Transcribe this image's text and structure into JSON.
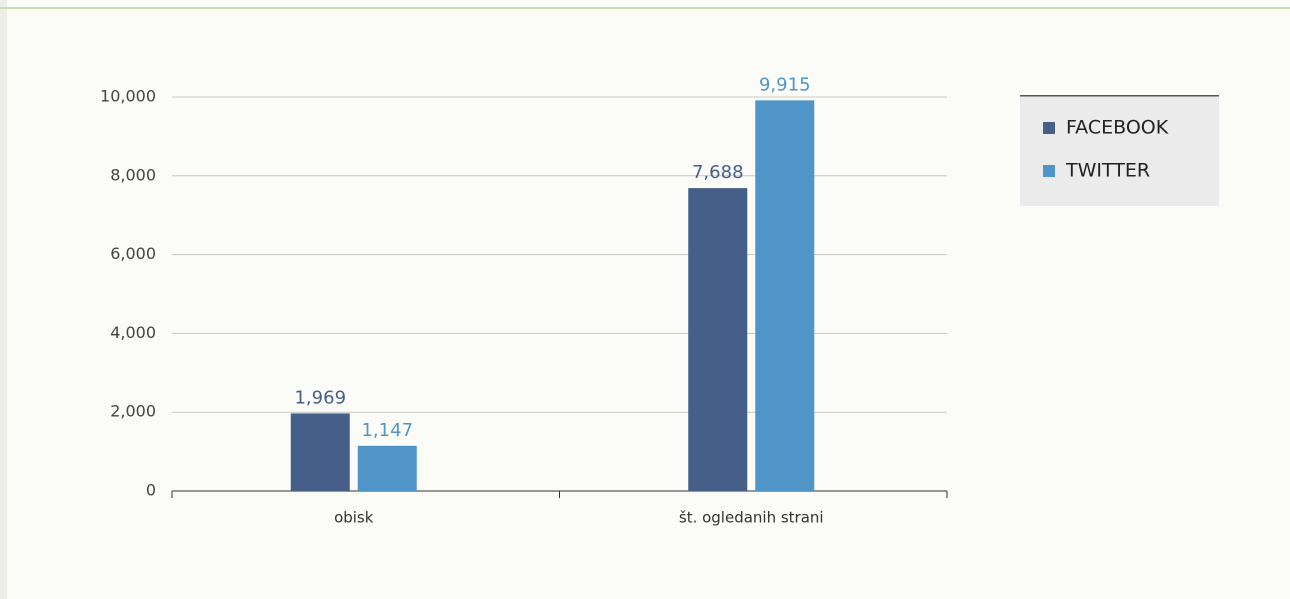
{
  "chart_data": {
    "type": "bar",
    "categories": [
      "obisk",
      "št. ogledanih strani"
    ],
    "series": [
      {
        "name": "FACEBOOK",
        "color": "#465f88",
        "values": [
          1969,
          7688
        ],
        "value_labels": [
          "1,969",
          "7,688"
        ]
      },
      {
        "name": "TWITTER",
        "color": "#4f95c8",
        "values": [
          1147,
          9915
        ],
        "value_labels": [
          "1,147",
          "9,915"
        ]
      }
    ],
    "ylim": [
      0,
      10000
    ],
    "yticks": [
      0,
      {
        "value": 2000,
        "label": "2,000"
      },
      {
        "value": 4000,
        "label": "4,000"
      },
      {
        "value": 6000,
        "label": "6,000"
      },
      {
        "value": 8000,
        "label": "8,000"
      },
      {
        "value": 10000,
        "label": "10,000"
      }
    ],
    "grid": true,
    "legend": "right"
  }
}
